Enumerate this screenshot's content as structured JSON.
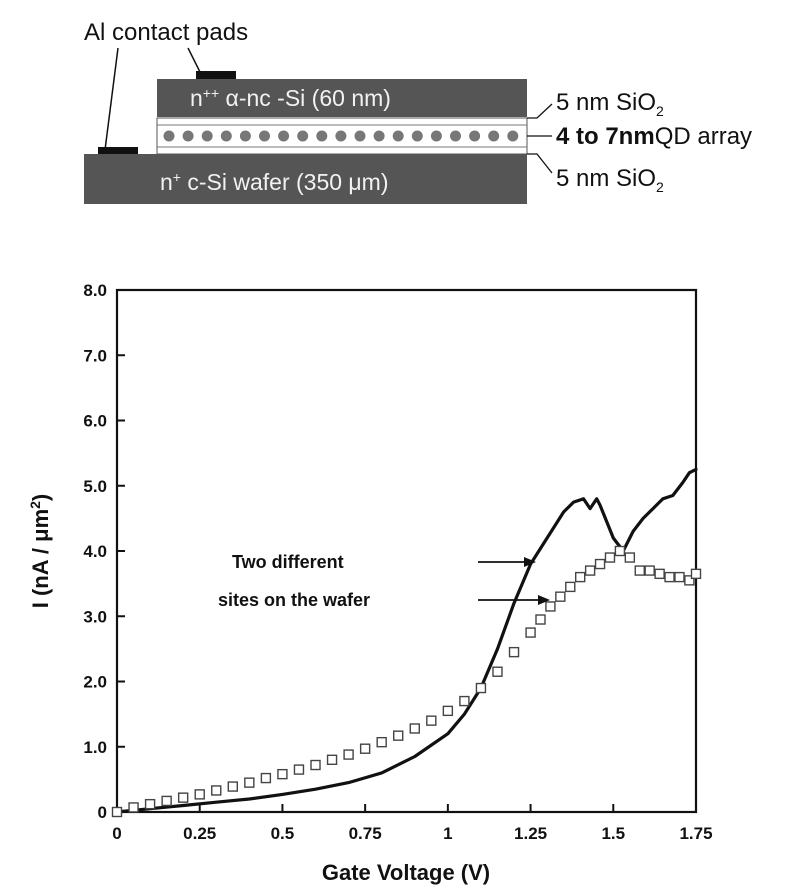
{
  "diagram": {
    "contact_label": "Al contact pads",
    "top_layer_prefix": "n",
    "top_layer_sup": "++",
    "top_layer_rest": " α-nc -Si (60 nm)",
    "wafer_prefix": "n",
    "wafer_sup": "+",
    "wafer_rest": " c-Si wafer (350 μm)",
    "oxide_top_main": "5 nm SiO",
    "oxide_top_sub": "2",
    "qd_bold": "4 to 7nm",
    "qd_rest": "QD array",
    "oxide_bottom_main": "5 nm SiO",
    "oxide_bottom_sub": "2",
    "colors": {
      "layer": "#555555",
      "pad": "#111111",
      "dot": "#777777"
    }
  },
  "chart_data": {
    "type": "line",
    "xlabel": "Gate Voltage (V)",
    "ylabel_main": "I  (nA / μm",
    "ylabel_sup": "2",
    "ylabel_end": ")",
    "xlim": [
      0,
      1.75
    ],
    "ylim": [
      0,
      8
    ],
    "x_ticks": [
      0,
      0.25,
      0.5,
      0.75,
      1,
      1.25,
      1.5,
      1.75
    ],
    "x_tick_labels": [
      "0",
      "0.25",
      "0.5",
      "0.75",
      "1",
      "1.25",
      "1.5",
      "1.75"
    ],
    "y_ticks": [
      0,
      1,
      2,
      3,
      4,
      5,
      6,
      7,
      8
    ],
    "y_tick_labels": [
      "0",
      "1.0",
      "2.0",
      "3.0",
      "4.0",
      "5.0",
      "6.0",
      "7.0",
      "8.0"
    ],
    "grid": false,
    "annotation_line1": "Two different",
    "annotation_line2": "sites on the wafer",
    "series": [
      {
        "style": "solid-line",
        "x": [
          0,
          0.1,
          0.2,
          0.3,
          0.4,
          0.5,
          0.6,
          0.7,
          0.8,
          0.9,
          1.0,
          1.05,
          1.1,
          1.15,
          1.2,
          1.25,
          1.3,
          1.35,
          1.38,
          1.41,
          1.43,
          1.45,
          1.46,
          1.48,
          1.5,
          1.53,
          1.56,
          1.59,
          1.62,
          1.65,
          1.68,
          1.71,
          1.73,
          1.75
        ],
        "y": [
          0,
          0.05,
          0.1,
          0.15,
          0.2,
          0.27,
          0.35,
          0.45,
          0.6,
          0.85,
          1.2,
          1.5,
          1.9,
          2.5,
          3.2,
          3.8,
          4.2,
          4.6,
          4.75,
          4.8,
          4.65,
          4.8,
          4.7,
          4.45,
          4.2,
          4.0,
          4.3,
          4.5,
          4.65,
          4.8,
          4.85,
          5.05,
          5.2,
          5.25
        ]
      },
      {
        "style": "square-markers",
        "x": [
          0,
          0.05,
          0.1,
          0.15,
          0.2,
          0.25,
          0.3,
          0.35,
          0.4,
          0.45,
          0.5,
          0.55,
          0.6,
          0.65,
          0.7,
          0.75,
          0.8,
          0.85,
          0.9,
          0.95,
          1.0,
          1.05,
          1.1,
          1.15,
          1.2,
          1.25,
          1.28,
          1.31,
          1.34,
          1.37,
          1.4,
          1.43,
          1.46,
          1.49,
          1.52,
          1.55,
          1.58,
          1.61,
          1.64,
          1.67,
          1.7,
          1.73,
          1.75
        ],
        "y": [
          0,
          0.07,
          0.12,
          0.17,
          0.22,
          0.27,
          0.33,
          0.39,
          0.45,
          0.52,
          0.58,
          0.65,
          0.72,
          0.8,
          0.88,
          0.97,
          1.07,
          1.17,
          1.28,
          1.4,
          1.55,
          1.7,
          1.9,
          2.15,
          2.45,
          2.75,
          2.95,
          3.15,
          3.3,
          3.45,
          3.6,
          3.7,
          3.8,
          3.9,
          4.0,
          3.9,
          3.7,
          3.7,
          3.65,
          3.6,
          3.6,
          3.55,
          3.65
        ]
      }
    ]
  }
}
